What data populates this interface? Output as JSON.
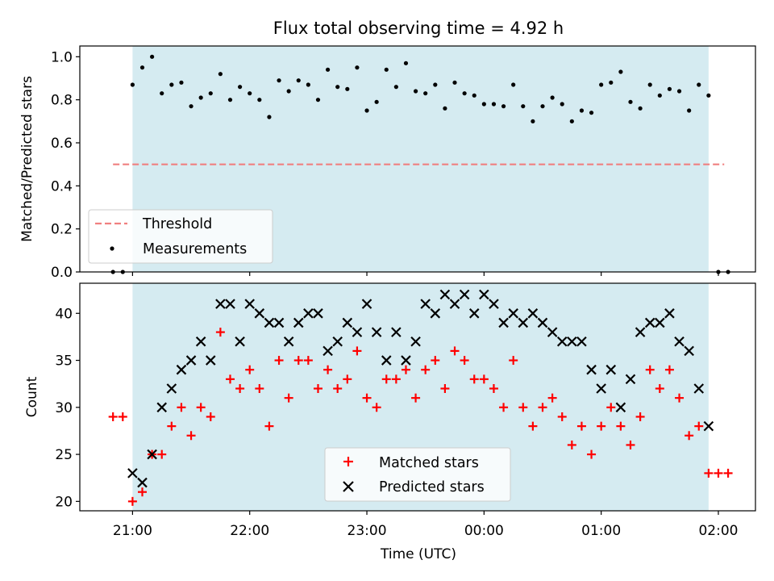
{
  "chart_data": [
    {
      "type": "scatter",
      "title": "Flux total observing time = 4.92 h",
      "xlabel": "",
      "ylabel": "Matched/Predicted stars",
      "ylim": [
        0,
        1.05
      ],
      "xlim": [
        "20:33",
        "02:19"
      ],
      "x_ticks": [
        "21:00",
        "22:00",
        "23:00",
        "00:00",
        "01:00",
        "02:00"
      ],
      "y_ticks": [
        "0.0",
        "0.2",
        "0.4",
        "0.6",
        "0.8",
        "1.0"
      ],
      "observing_window": [
        "21:00",
        "01:55"
      ],
      "threshold": {
        "name": "Threshold",
        "y": 0.5,
        "x_range": [
          "20:50",
          "02:03"
        ],
        "color": "#f08080"
      },
      "legend": [
        "Threshold",
        "Measurements"
      ],
      "legend_position": "lower-left",
      "series": [
        {
          "name": "Measurements",
          "color": "#000000",
          "x": [
            "20:50",
            "20:55",
            "21:00",
            "21:05",
            "21:10",
            "21:15",
            "21:20",
            "21:25",
            "21:30",
            "21:35",
            "21:40",
            "21:45",
            "21:50",
            "21:55",
            "22:00",
            "22:05",
            "22:10",
            "22:15",
            "22:20",
            "22:25",
            "22:30",
            "22:35",
            "22:40",
            "22:45",
            "22:50",
            "22:55",
            "23:00",
            "23:05",
            "23:10",
            "23:15",
            "23:20",
            "23:25",
            "23:30",
            "23:35",
            "23:40",
            "23:45",
            "23:50",
            "23:55",
            "00:00",
            "00:05",
            "00:10",
            "00:15",
            "00:20",
            "00:25",
            "00:30",
            "00:35",
            "00:40",
            "00:45",
            "00:50",
            "00:55",
            "01:00",
            "01:05",
            "01:10",
            "01:15",
            "01:20",
            "01:25",
            "01:30",
            "01:35",
            "01:40",
            "01:45",
            "01:50",
            "01:55",
            "02:00",
            "02:05"
          ],
          "y": [
            0.0,
            0.0,
            0.87,
            0.95,
            1.0,
            0.83,
            0.87,
            0.88,
            0.77,
            0.81,
            0.83,
            0.92,
            0.8,
            0.86,
            0.83,
            0.8,
            0.72,
            0.89,
            0.84,
            0.89,
            0.87,
            0.8,
            0.94,
            0.86,
            0.85,
            0.95,
            0.75,
            0.79,
            0.94,
            0.86,
            0.97,
            0.84,
            0.83,
            0.87,
            0.76,
            0.88,
            0.83,
            0.82,
            0.78,
            0.78,
            0.77,
            0.87,
            0.77,
            0.7,
            0.77,
            0.81,
            0.78,
            0.7,
            0.75,
            0.74,
            0.87,
            0.88,
            0.93,
            0.79,
            0.76,
            0.87,
            0.82,
            0.85,
            0.84,
            0.75,
            0.87,
            0.82,
            0.0,
            0.0
          ]
        }
      ]
    },
    {
      "type": "scatter",
      "xlabel": "Time (UTC)",
      "ylabel": "Count",
      "ylim": [
        19,
        43.2
      ],
      "xlim": [
        "20:33",
        "02:19"
      ],
      "x_ticks": [
        "21:00",
        "22:00",
        "23:00",
        "00:00",
        "01:00",
        "02:00"
      ],
      "y_ticks": [
        "20",
        "25",
        "30",
        "35",
        "40"
      ],
      "observing_window": [
        "21:00",
        "01:55"
      ],
      "legend": [
        "Matched stars",
        "Predicted stars"
      ],
      "legend_position": "lower-center",
      "series": [
        {
          "name": "Matched stars",
          "marker": "+",
          "color": "#ff0000",
          "x": [
            "20:50",
            "20:55",
            "21:00",
            "21:05",
            "21:10",
            "21:15",
            "21:20",
            "21:25",
            "21:30",
            "21:35",
            "21:40",
            "21:45",
            "21:50",
            "21:55",
            "22:00",
            "22:05",
            "22:10",
            "22:15",
            "22:20",
            "22:25",
            "22:30",
            "22:35",
            "22:40",
            "22:45",
            "22:50",
            "22:55",
            "23:00",
            "23:05",
            "23:10",
            "23:15",
            "23:20",
            "23:25",
            "23:30",
            "23:35",
            "23:40",
            "23:45",
            "23:50",
            "23:55",
            "00:00",
            "00:05",
            "00:10",
            "00:15",
            "00:20",
            "00:25",
            "00:30",
            "00:35",
            "00:40",
            "00:45",
            "00:50",
            "00:55",
            "01:00",
            "01:05",
            "01:10",
            "01:15",
            "01:20",
            "01:25",
            "01:30",
            "01:35",
            "01:40",
            "01:45",
            "01:50",
            "01:55",
            "02:00",
            "02:05"
          ],
          "y": [
            29,
            29,
            20,
            21,
            25,
            25,
            28,
            30,
            27,
            30,
            29,
            38,
            33,
            32,
            34,
            32,
            28,
            35,
            31,
            35,
            35,
            32,
            34,
            32,
            33,
            36,
            31,
            30,
            33,
            33,
            34,
            31,
            34,
            35,
            32,
            36,
            35,
            33,
            33,
            32,
            30,
            35,
            30,
            28,
            30,
            31,
            29,
            26,
            28,
            25,
            28,
            30,
            28,
            26,
            29,
            34,
            32,
            34,
            31,
            27,
            28,
            23,
            23,
            23
          ]
        },
        {
          "name": "Predicted stars",
          "marker": "x",
          "color": "#000000",
          "x": [
            "21:00",
            "21:05",
            "21:10",
            "21:15",
            "21:20",
            "21:25",
            "21:30",
            "21:35",
            "21:40",
            "21:45",
            "21:50",
            "21:55",
            "22:00",
            "22:05",
            "22:10",
            "22:15",
            "22:20",
            "22:25",
            "22:30",
            "22:35",
            "22:40",
            "22:45",
            "22:50",
            "22:55",
            "23:00",
            "23:05",
            "23:10",
            "23:15",
            "23:20",
            "23:25",
            "23:30",
            "23:35",
            "23:40",
            "23:45",
            "23:50",
            "23:55",
            "00:00",
            "00:05",
            "00:10",
            "00:15",
            "00:20",
            "00:25",
            "00:30",
            "00:35",
            "00:40",
            "00:45",
            "00:50",
            "00:55",
            "01:00",
            "01:05",
            "01:10",
            "01:15",
            "01:20",
            "01:25",
            "01:30",
            "01:35",
            "01:40",
            "01:45",
            "01:50",
            "01:55"
          ],
          "y": [
            23,
            22,
            25,
            30,
            32,
            34,
            35,
            37,
            35,
            41,
            41,
            37,
            41,
            40,
            39,
            39,
            37,
            39,
            40,
            40,
            36,
            37,
            39,
            38,
            41,
            38,
            35,
            38,
            35,
            37,
            41,
            40,
            42,
            41,
            42,
            40,
            42,
            41,
            39,
            40,
            39,
            40,
            39,
            38,
            37,
            37,
            37,
            34,
            32,
            34,
            30,
            33,
            38,
            39,
            39,
            40,
            37,
            36,
            32,
            28
          ]
        }
      ]
    }
  ]
}
